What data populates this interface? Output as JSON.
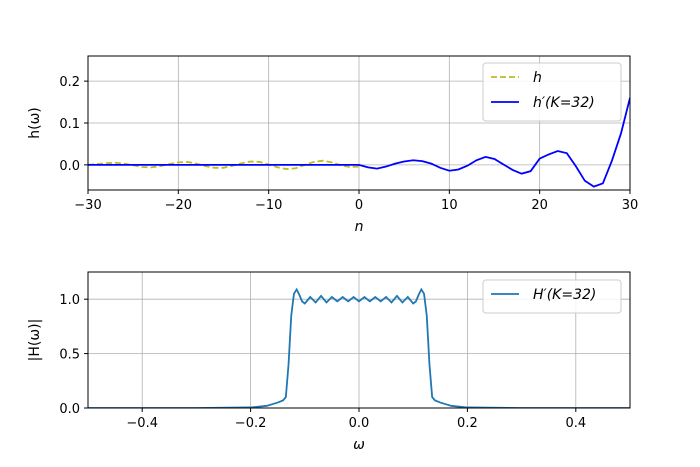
{
  "chart_data": [
    {
      "type": "line",
      "xlabel": "n",
      "ylabel": "h(ω)",
      "xlim": [
        -30,
        30
      ],
      "ylim": [
        -0.06,
        0.26
      ],
      "xticks": [
        -30,
        -20,
        -10,
        0,
        10,
        20,
        30
      ],
      "xtick_labels": [
        "−30",
        "−20",
        "−10",
        "0",
        "10",
        "20",
        "30"
      ],
      "yticks": [
        0.0,
        0.1,
        0.2
      ],
      "ytick_labels": [
        "0.0",
        "0.1",
        "0.2"
      ],
      "grid": true,
      "legend": "top-right",
      "series": [
        {
          "name": "h",
          "style": "dashed",
          "color": "#bcbd22",
          "x": [
            -30,
            -29,
            -28,
            -27,
            -26,
            -25,
            -24,
            -23,
            -22,
            -21,
            -20,
            -19,
            -18,
            -17,
            -16,
            -15,
            -14,
            -13,
            -12,
            -11,
            -10,
            -9,
            -8,
            -7,
            -6,
            -5,
            -4,
            -3,
            -2,
            -1,
            0
          ],
          "values": [
            0.0,
            0.002,
            0.004,
            0.005,
            0.003,
            -0.001,
            -0.005,
            -0.006,
            -0.003,
            0.002,
            0.006,
            0.007,
            0.003,
            -0.003,
            -0.007,
            -0.007,
            -0.002,
            0.004,
            0.008,
            0.007,
            0.001,
            -0.006,
            -0.01,
            -0.008,
            0.0,
            0.007,
            0.01,
            0.006,
            -0.001,
            -0.005,
            -0.004
          ]
        },
        {
          "name": "h′(K=32)",
          "style": "solid",
          "color": "#0000ff",
          "x": [
            -30,
            -29,
            -28,
            -27,
            -26,
            -25,
            -24,
            -23,
            -22,
            -21,
            -20,
            -19,
            -18,
            -17,
            -16,
            -15,
            -14,
            -13,
            -12,
            -11,
            -10,
            -9,
            -8,
            -7,
            -6,
            -5,
            -4,
            -3,
            -2,
            -1,
            0,
            1,
            2,
            3,
            4,
            5,
            6,
            7,
            8,
            9,
            10,
            11,
            12,
            13,
            14,
            15,
            16,
            17,
            18,
            19,
            20,
            21,
            22,
            23,
            24,
            25,
            26,
            27,
            28,
            29,
            30
          ],
          "values": [
            0.0,
            0.0,
            0.0,
            0.0,
            0.0,
            0.0,
            0.0,
            0.0,
            0.0,
            0.0,
            0.0,
            0.0,
            0.0,
            0.0,
            0.0,
            0.0,
            0.0,
            0.0,
            0.0,
            0.0,
            0.0,
            0.0,
            0.0,
            0.0,
            0.0,
            0.0,
            0.0,
            0.0,
            0.0,
            0.0,
            0.0,
            -0.006,
            -0.009,
            -0.004,
            0.003,
            0.008,
            0.011,
            0.009,
            0.003,
            -0.007,
            -0.014,
            -0.011,
            -0.002,
            0.011,
            0.019,
            0.014,
            0.001,
            -0.012,
            -0.021,
            -0.015,
            0.015,
            0.025,
            0.033,
            0.028,
            -0.003,
            -0.038,
            -0.052,
            -0.044,
            0.01,
            0.075,
            0.16
          ]
        }
      ]
    },
    {
      "type": "line",
      "xlabel": "ω",
      "ylabel": "|H(ω)|",
      "xlim": [
        -0.5,
        0.5
      ],
      "ylim": [
        0.0,
        1.25
      ],
      "xticks": [
        -0.4,
        -0.2,
        0.0,
        0.2,
        0.4
      ],
      "xtick_labels": [
        "−0.4",
        "−0.2",
        "0.0",
        "0.2",
        "0.4"
      ],
      "yticks": [
        0.0,
        0.5,
        1.0
      ],
      "ytick_labels": [
        "0.0",
        "0.5",
        "1.0"
      ],
      "grid": true,
      "legend": "top-right",
      "series": [
        {
          "name": "H′(K=32)",
          "style": "solid",
          "color": "#1f77b4",
          "x": [
            -0.5,
            -0.3,
            -0.2,
            -0.17,
            -0.16,
            -0.15,
            -0.14,
            -0.135,
            -0.13,
            -0.125,
            -0.12,
            -0.115,
            -0.11,
            -0.105,
            -0.1,
            -0.09,
            -0.08,
            -0.07,
            -0.06,
            -0.05,
            -0.04,
            -0.03,
            -0.02,
            -0.01,
            0.0,
            0.01,
            0.02,
            0.03,
            0.04,
            0.05,
            0.06,
            0.07,
            0.08,
            0.09,
            0.1,
            0.105,
            0.11,
            0.115,
            0.12,
            0.125,
            0.13,
            0.135,
            0.14,
            0.15,
            0.16,
            0.17,
            0.2,
            0.3,
            0.5
          ],
          "values": [
            0.0,
            0.0,
            0.005,
            0.02,
            0.035,
            0.05,
            0.07,
            0.1,
            0.4,
            0.85,
            1.05,
            1.09,
            1.04,
            0.98,
            0.96,
            1.02,
            0.97,
            1.03,
            0.97,
            1.02,
            0.98,
            1.02,
            0.98,
            1.02,
            0.98,
            1.02,
            0.98,
            1.02,
            0.98,
            1.02,
            0.97,
            1.03,
            0.97,
            1.02,
            0.96,
            0.98,
            1.04,
            1.09,
            1.05,
            0.85,
            0.4,
            0.1,
            0.07,
            0.05,
            0.035,
            0.02,
            0.005,
            0.0,
            0.0
          ]
        }
      ]
    }
  ]
}
